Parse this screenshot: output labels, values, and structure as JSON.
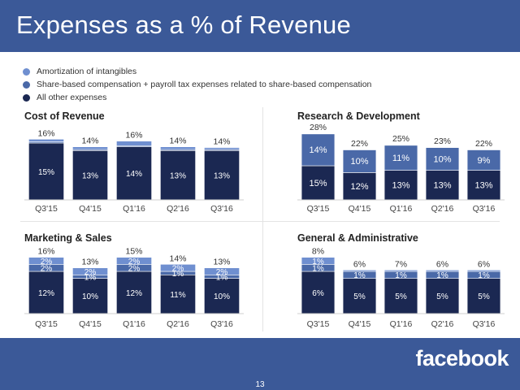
{
  "header": {
    "title": "Expenses as a % of Revenue"
  },
  "legend": {
    "items": [
      {
        "label": "Amortization of intangibles",
        "color": "#6f8fd0"
      },
      {
        "label": "Share-based compensation + payroll tax expenses related to share-based compensation",
        "color": "#4a69a8"
      },
      {
        "label": "All other expenses",
        "color": "#1b2852"
      }
    ]
  },
  "colors": {
    "amortization": "#6f8fd0",
    "share_based": "#4a69a8",
    "other": "#1b2852",
    "brand": "#3b5998"
  },
  "chart_data": [
    {
      "type": "bar",
      "stacked": true,
      "title": "Cost of Revenue",
      "categories": [
        "Q3'15",
        "Q4'15",
        "Q1'16",
        "Q2'16",
        "Q3'16"
      ],
      "totals": [
        "16%",
        "14%",
        "16%",
        "14%",
        "14%"
      ],
      "series": [
        {
          "name": "All other expenses",
          "color": "#1b2852",
          "values": [
            15,
            13,
            14,
            13,
            13
          ],
          "labels": [
            "15%",
            "13%",
            "14%",
            "13%",
            "13%"
          ]
        },
        {
          "name": "Share-based compensation + payroll tax expenses related to share-based compensation",
          "color": "#4a69a8",
          "values": [
            0.3,
            0.3,
            0.3,
            0.3,
            0.3
          ],
          "labels": [
            "",
            "",
            "",
            "",
            ""
          ]
        },
        {
          "name": "Amortization of intangibles",
          "color": "#6f8fd0",
          "values": [
            0.7,
            0.7,
            1.2,
            0.7,
            0.5
          ],
          "labels": [
            "",
            "",
            "",
            "",
            ""
          ]
        }
      ],
      "ylim": [
        0,
        18
      ]
    },
    {
      "type": "bar",
      "stacked": true,
      "title": "Research & Development",
      "categories": [
        "Q3'15",
        "Q4'15",
        "Q1'16",
        "Q2'16",
        "Q3'16"
      ],
      "totals": [
        "28%",
        "22%",
        "25%",
        "23%",
        "22%"
      ],
      "series": [
        {
          "name": "All other expenses",
          "color": "#1b2852",
          "values": [
            15,
            12,
            13,
            13,
            13
          ],
          "labels": [
            "15%",
            "12%",
            "13%",
            "13%",
            "13%"
          ]
        },
        {
          "name": "Share-based compensation + payroll tax expenses related to share-based compensation",
          "color": "#4a69a8",
          "values": [
            14,
            10,
            11,
            10,
            9
          ],
          "labels": [
            "14%",
            "10%",
            "11%",
            "10%",
            "9%"
          ]
        },
        {
          "name": "Amortization of intangibles",
          "color": "#6f8fd0",
          "values": [
            0.2,
            0.2,
            0.2,
            0.2,
            0.2
          ],
          "labels": [
            "",
            "",
            "",
            "",
            ""
          ]
        }
      ],
      "ylim": [
        0,
        30
      ]
    },
    {
      "type": "bar",
      "stacked": true,
      "title": "Marketing & Sales",
      "categories": [
        "Q3'15",
        "Q4'15",
        "Q1'16",
        "Q2'16",
        "Q3'16"
      ],
      "totals": [
        "16%",
        "13%",
        "15%",
        "14%",
        "13%"
      ],
      "series": [
        {
          "name": "All other expenses",
          "color": "#1b2852",
          "values": [
            12,
            10,
            12,
            11,
            10
          ],
          "labels": [
            "12%",
            "10%",
            "12%",
            "11%",
            "10%"
          ]
        },
        {
          "name": "Share-based compensation + payroll tax expenses related to share-based compensation",
          "color": "#4a69a8",
          "values": [
            2,
            1,
            2,
            1,
            1
          ],
          "labels": [
            "2%",
            "1%",
            "2%",
            "1%",
            "1%"
          ]
        },
        {
          "name": "Amortization of intangibles",
          "color": "#6f8fd0",
          "values": [
            2,
            2,
            2,
            2,
            2
          ],
          "labels": [
            "2%",
            "2%",
            "2%",
            "2%",
            "2%"
          ]
        }
      ],
      "ylim": [
        0,
        18
      ]
    },
    {
      "type": "bar",
      "stacked": true,
      "title": "General & Administrative",
      "categories": [
        "Q3'15",
        "Q4'15",
        "Q1'16",
        "Q2'16",
        "Q3'16"
      ],
      "totals": [
        "8%",
        "6%",
        "7%",
        "6%",
        "6%"
      ],
      "series": [
        {
          "name": "All other expenses",
          "color": "#1b2852",
          "values": [
            6,
            5,
            5,
            5,
            5
          ],
          "labels": [
            "6%",
            "5%",
            "5%",
            "5%",
            "5%"
          ]
        },
        {
          "name": "Share-based compensation + payroll tax expenses related to share-based compensation",
          "color": "#4a69a8",
          "values": [
            1,
            1,
            1,
            1,
            1
          ],
          "labels": [
            "1%",
            "1%",
            "1%",
            "1%",
            "1%"
          ]
        },
        {
          "name": "Amortization of intangibles",
          "color": "#6f8fd0",
          "values": [
            1,
            0.2,
            0.2,
            0.2,
            0.2
          ],
          "labels": [
            "1%",
            "",
            "",
            "",
            ""
          ]
        }
      ],
      "ylim": [
        0,
        9
      ]
    }
  ],
  "footer": {
    "page_number": "13",
    "logo": "facebook"
  }
}
